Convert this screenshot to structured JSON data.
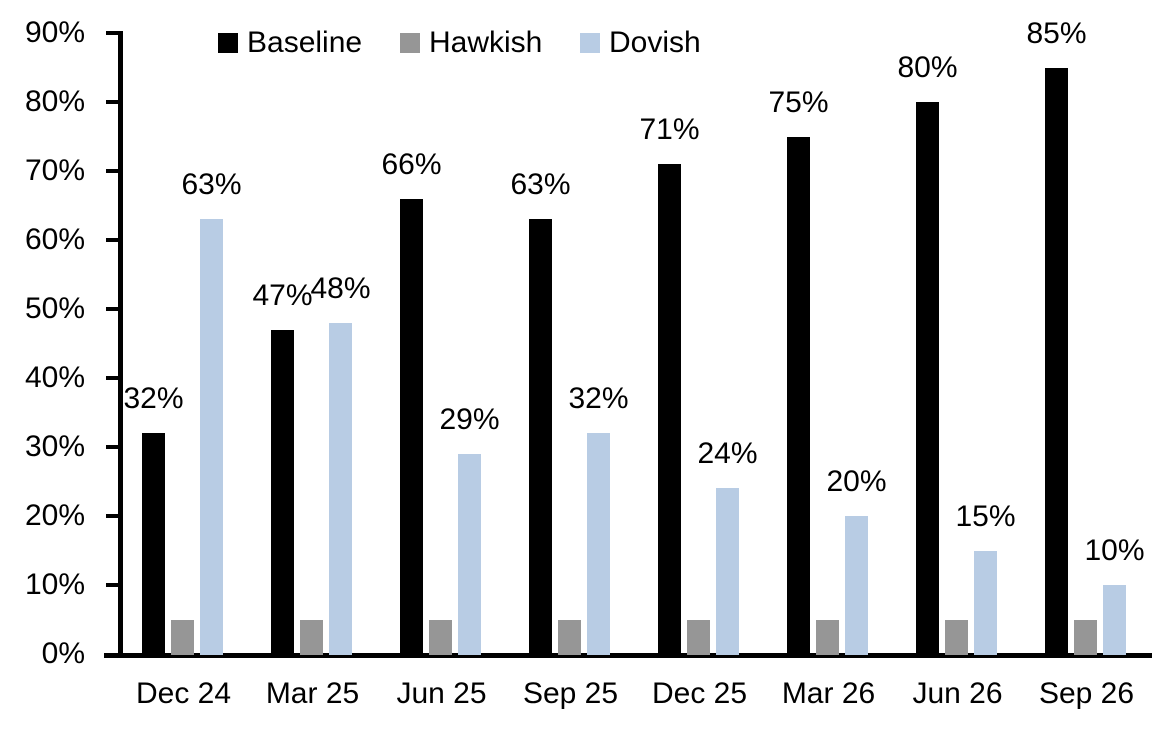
{
  "chart_data": {
    "type": "bar",
    "title": "",
    "xlabel": "",
    "ylabel": "",
    "categories": [
      "Dec 24",
      "Mar 25",
      "Jun 25",
      "Sep 25",
      "Dec 25",
      "Mar 26",
      "Jun 26",
      "Sep 26"
    ],
    "series": [
      {
        "name": "Baseline",
        "color": "#000000",
        "values": [
          32,
          47,
          66,
          63,
          71,
          75,
          80,
          85
        ],
        "show_labels": true
      },
      {
        "name": "Hawkish",
        "color": "#969696",
        "values": [
          5,
          5,
          5,
          5,
          5,
          5,
          5,
          5
        ],
        "show_labels": false
      },
      {
        "name": "Dovish",
        "color": "#b8cce4",
        "values": [
          63,
          48,
          29,
          32,
          24,
          20,
          15,
          10
        ],
        "show_labels": true
      }
    ],
    "data_label_suffix": "%",
    "y_axis": {
      "min": 0,
      "max": 90,
      "step": 10,
      "tick_labels": [
        "0%",
        "10%",
        "20%",
        "30%",
        "40%",
        "50%",
        "60%",
        "70%",
        "80%",
        "90%"
      ]
    },
    "legend": {
      "position": "top",
      "entries": [
        "Baseline",
        "Hawkish",
        "Dovish"
      ]
    },
    "grid": false,
    "background": "#ffffff",
    "text_color": "#000000"
  }
}
